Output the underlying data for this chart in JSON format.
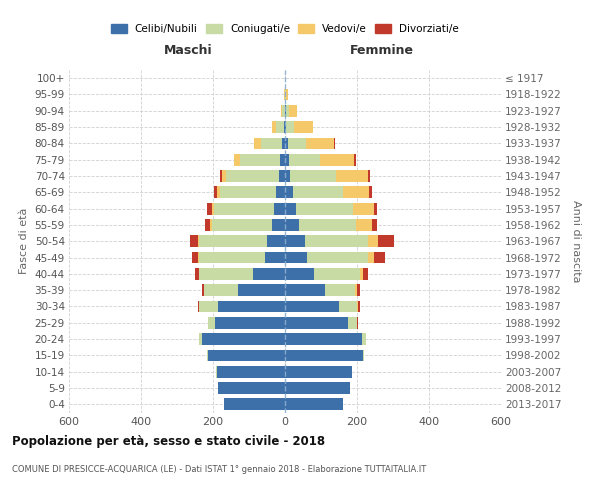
{
  "age_groups": [
    "0-4",
    "5-9",
    "10-14",
    "15-19",
    "20-24",
    "25-29",
    "30-34",
    "35-39",
    "40-44",
    "45-49",
    "50-54",
    "55-59",
    "60-64",
    "65-69",
    "70-74",
    "75-79",
    "80-84",
    "85-89",
    "90-94",
    "95-99",
    "100+"
  ],
  "birth_years": [
    "2013-2017",
    "2008-2012",
    "2003-2007",
    "1998-2002",
    "1993-1997",
    "1988-1992",
    "1983-1987",
    "1978-1982",
    "1973-1977",
    "1968-1972",
    "1963-1967",
    "1958-1962",
    "1953-1957",
    "1948-1952",
    "1943-1947",
    "1938-1942",
    "1933-1937",
    "1928-1932",
    "1923-1927",
    "1918-1922",
    "≤ 1917"
  ],
  "male_celibi": [
    170,
    185,
    190,
    215,
    230,
    195,
    185,
    130,
    90,
    55,
    50,
    35,
    30,
    25,
    18,
    15,
    8,
    3,
    1,
    0,
    0
  ],
  "male_coniugati": [
    0,
    0,
    1,
    2,
    10,
    18,
    55,
    95,
    148,
    185,
    190,
    168,
    168,
    155,
    145,
    110,
    60,
    22,
    6,
    1,
    0
  ],
  "male_vedovi": [
    0,
    0,
    0,
    0,
    0,
    0,
    0,
    0,
    1,
    1,
    2,
    4,
    5,
    8,
    12,
    16,
    18,
    12,
    5,
    1,
    0
  ],
  "male_divorziati": [
    0,
    0,
    0,
    0,
    0,
    2,
    2,
    5,
    12,
    16,
    22,
    16,
    14,
    10,
    5,
    2,
    1,
    0,
    0,
    0,
    0
  ],
  "female_nubili": [
    162,
    180,
    185,
    218,
    215,
    175,
    150,
    110,
    80,
    62,
    55,
    38,
    30,
    22,
    15,
    10,
    8,
    4,
    2,
    1,
    0
  ],
  "female_coniugate": [
    0,
    0,
    0,
    2,
    10,
    25,
    50,
    85,
    128,
    168,
    175,
    158,
    158,
    140,
    128,
    88,
    50,
    22,
    8,
    2,
    0
  ],
  "female_vedove": [
    0,
    0,
    0,
    0,
    0,
    1,
    2,
    4,
    8,
    18,
    28,
    45,
    58,
    72,
    88,
    95,
    78,
    52,
    22,
    5,
    0
  ],
  "female_divorziate": [
    0,
    0,
    0,
    0,
    0,
    2,
    5,
    8,
    15,
    30,
    45,
    15,
    10,
    8,
    6,
    3,
    2,
    1,
    0,
    0,
    0
  ],
  "colors": {
    "celibi": "#3d6fa8",
    "coniugati": "#c8dba5",
    "vedovi": "#f5c96a",
    "divorziati": "#c0392b"
  },
  "xlim": 600,
  "title": "Popolazione per età, sesso e stato civile - 2018",
  "subtitle": "COMUNE DI PRESICCE-ACQUARICA (LE) - Dati ISTAT 1° gennaio 2018 - Elaborazione TUTTAITALIA.IT",
  "ylabel_left": "Fasce di età",
  "ylabel_right": "Anni di nascita",
  "label_maschi": "Maschi",
  "label_femmine": "Femmine",
  "legend_labels": [
    "Celibi/Nubili",
    "Coniugati/e",
    "Vedovi/e",
    "Divorziati/e"
  ]
}
